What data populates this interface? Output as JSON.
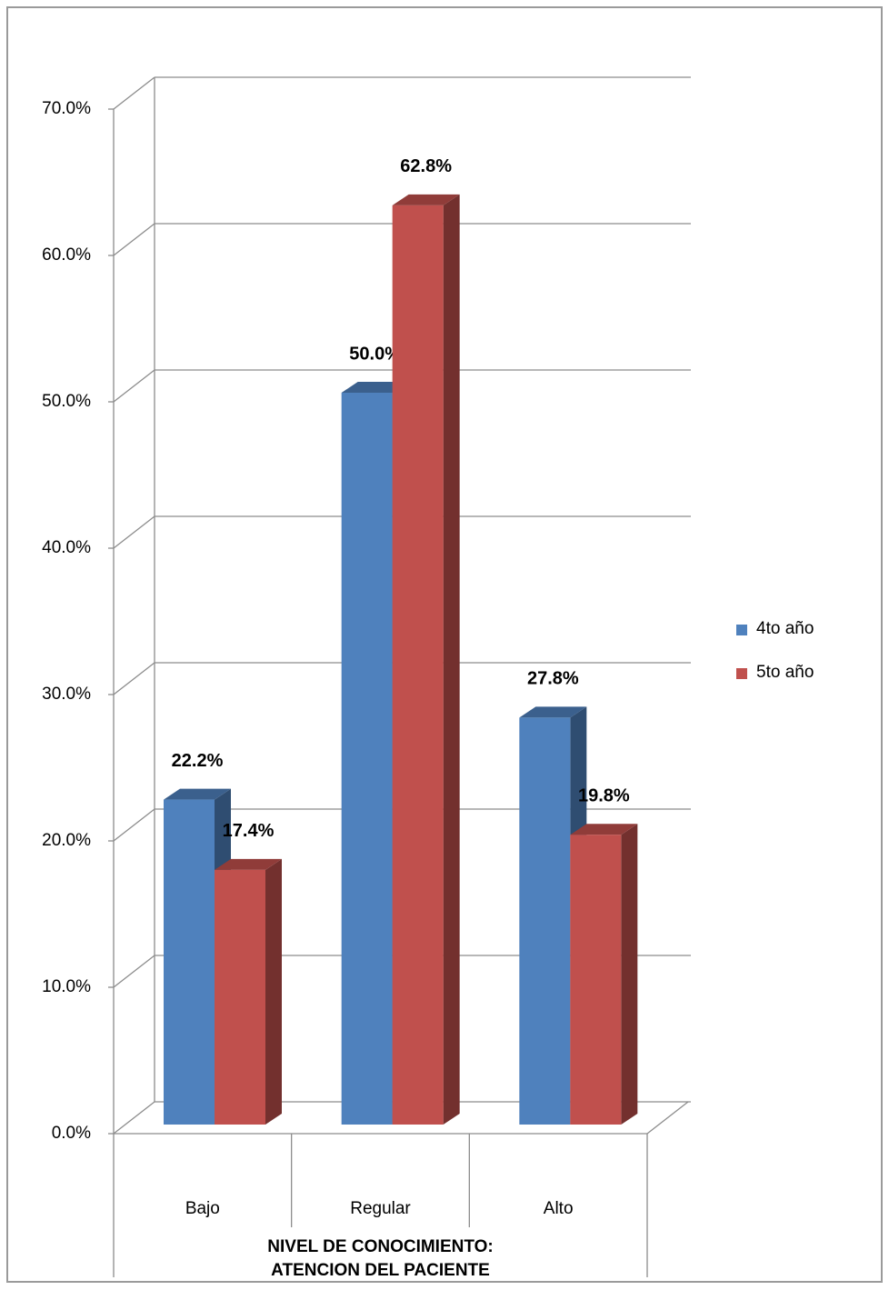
{
  "chart_data": {
    "type": "bar3d",
    "categories": [
      "Bajo",
      "Regular",
      "Alto"
    ],
    "series": [
      {
        "name": "4to año",
        "color": "#4f81bd",
        "values": [
          22.2,
          50.0,
          27.8
        ],
        "value_labels": [
          "22.2%",
          "50.0%",
          "27.8%"
        ]
      },
      {
        "name": "5to año",
        "color": "#c0504d",
        "values": [
          17.4,
          62.8,
          19.8
        ],
        "value_labels": [
          "17.4%",
          "62.8%",
          "19.8%"
        ]
      }
    ],
    "x_label": [
      "NIVEL DE CONOCIMIENTO:",
      "ATENCION DEL PACIENTE"
    ],
    "ylim": [
      0,
      70
    ],
    "yticks": [
      {
        "value": 0,
        "label": "0.0%"
      },
      {
        "value": 10,
        "label": "10.0%"
      },
      {
        "value": 20,
        "label": "20.0%"
      },
      {
        "value": 30,
        "label": "30.0%"
      },
      {
        "value": 40,
        "label": "40.0%"
      },
      {
        "value": 50,
        "label": "50.0%"
      },
      {
        "value": 60,
        "label": "60.0%"
      },
      {
        "value": 70,
        "label": "70.0%"
      }
    ],
    "grid": true,
    "legend": "right"
  }
}
